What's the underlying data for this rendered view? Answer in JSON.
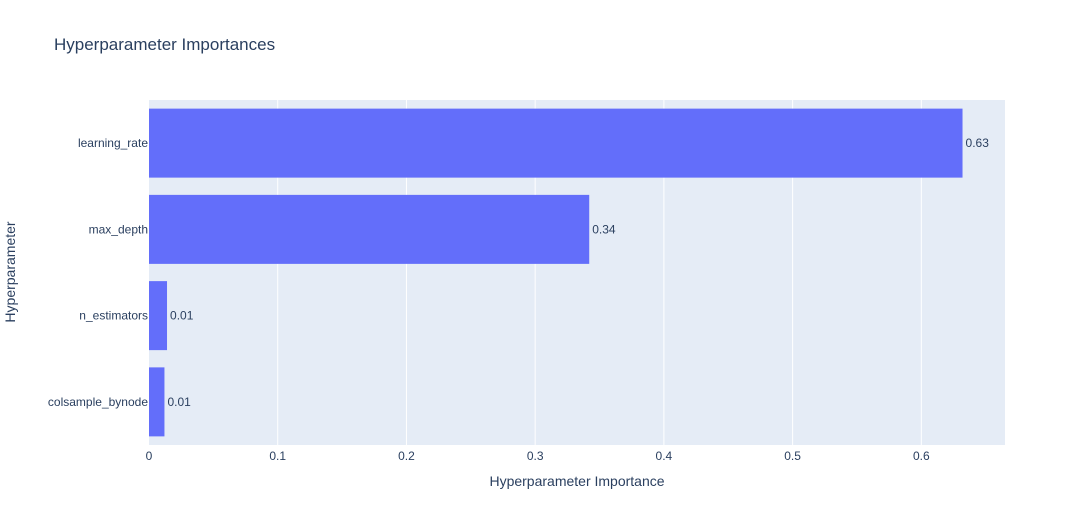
{
  "chart_data": {
    "type": "bar",
    "orientation": "horizontal",
    "title": "Hyperparameter Importances",
    "xlabel": "Hyperparameter Importance",
    "ylabel": "Hyperparameter",
    "categories": [
      "learning_rate",
      "max_depth",
      "n_estimators",
      "colsample_bynode"
    ],
    "values": [
      0.632,
      0.342,
      0.014,
      0.012
    ],
    "value_labels": [
      "0.63",
      "0.34",
      "0.01",
      "0.01"
    ],
    "xlim": [
      0,
      0.665
    ],
    "xticks": [
      0,
      0.1,
      0.2,
      0.3,
      0.4,
      0.5,
      0.6
    ],
    "xtick_labels": [
      "0",
      "0.1",
      "0.2",
      "0.3",
      "0.4",
      "0.5",
      "0.6"
    ],
    "grid": true,
    "colors": {
      "bar": "#636efa",
      "plot_background": "#e5ecf6",
      "text": "#2a3f5f"
    }
  }
}
